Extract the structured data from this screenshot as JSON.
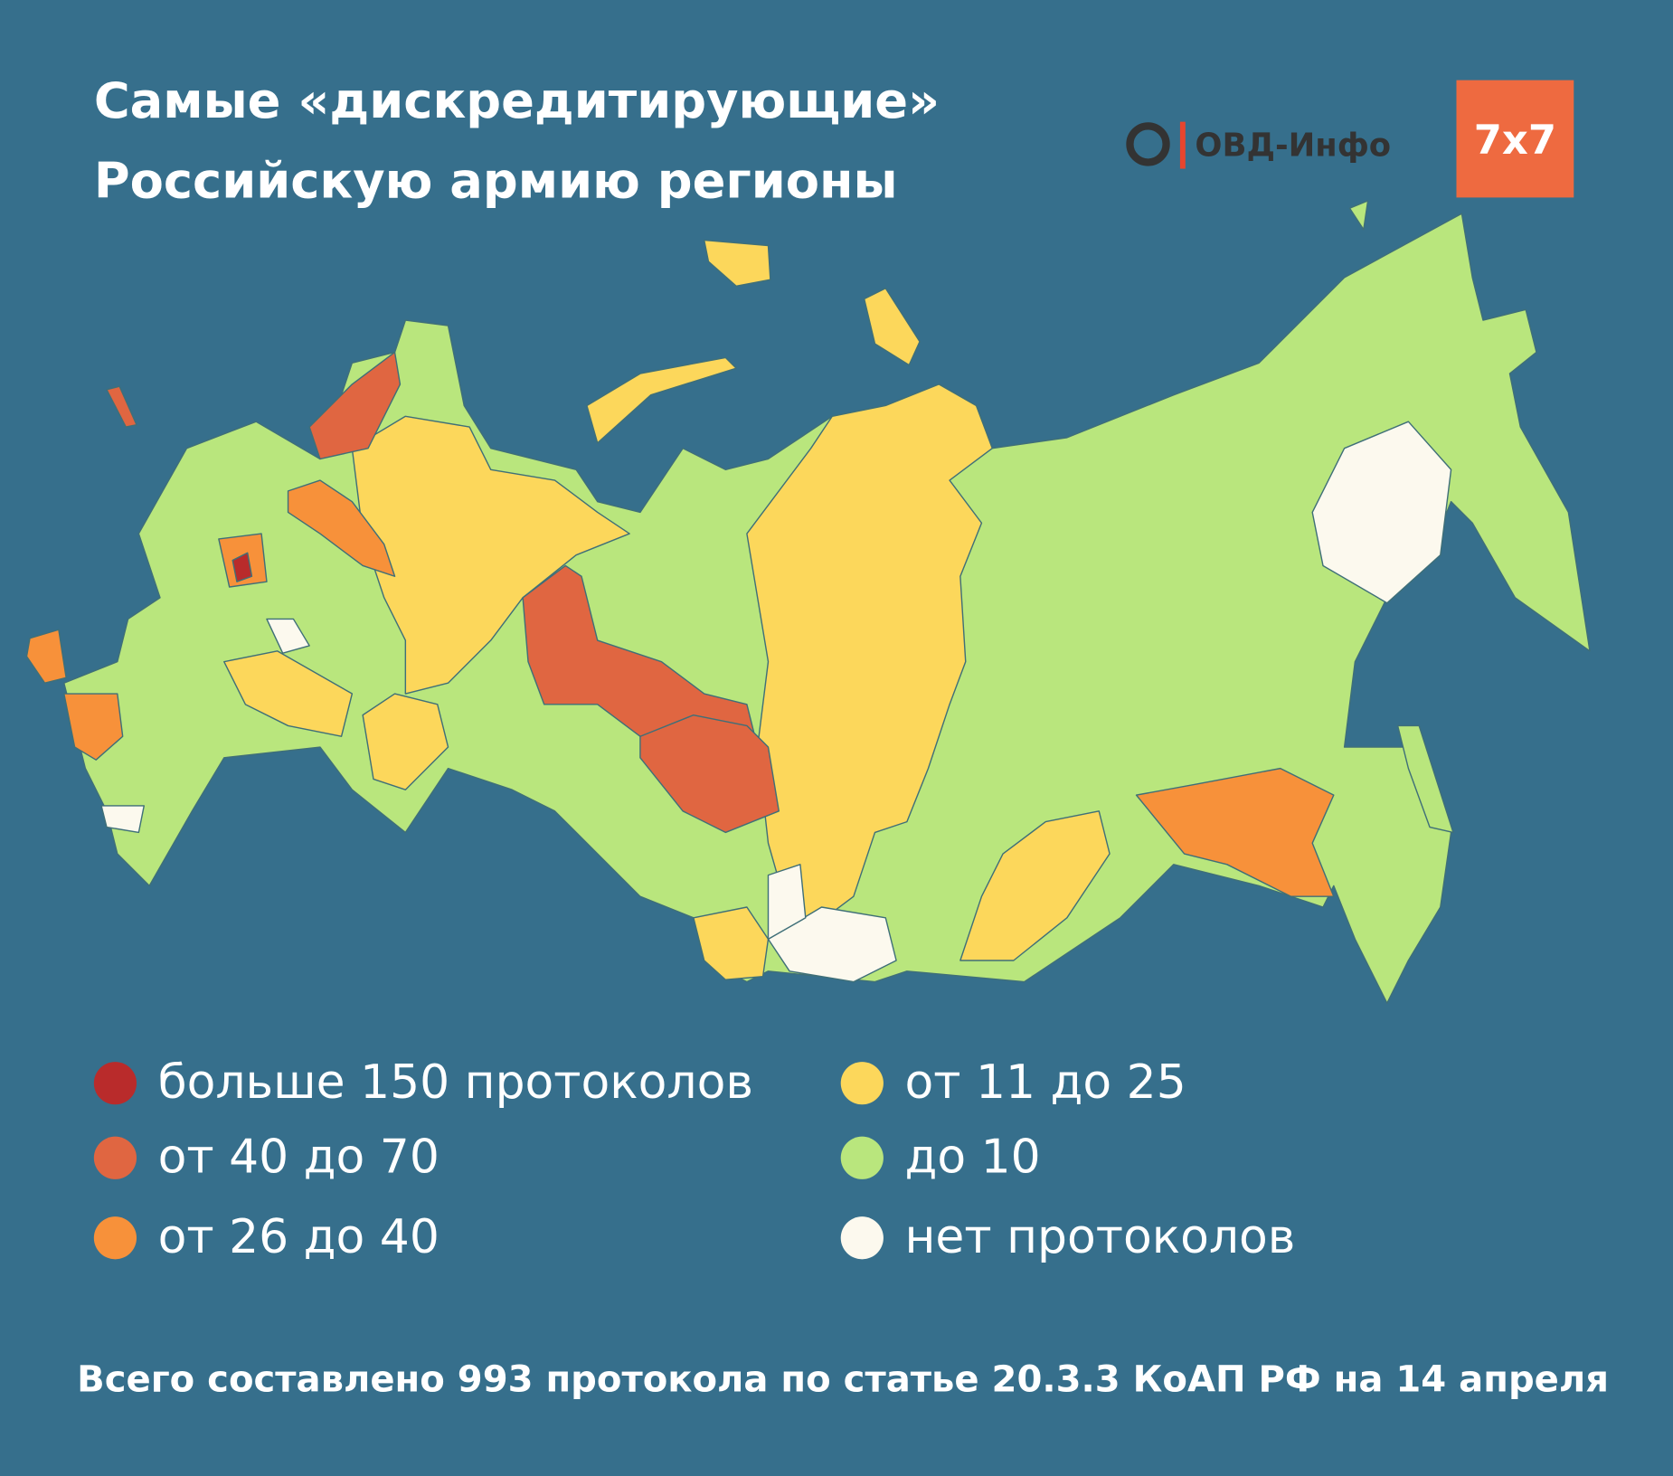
{
  "header": {
    "title": [
      "Самые «дискредитирующие»",
      "Российскую армию регионы"
    ],
    "logos": [
      "ОВД-Инфо",
      "7x7"
    ]
  },
  "legend": [
    {
      "label": "больше 150 протоколов",
      "color": "#b92b2b"
    },
    {
      "label": "от 40 до 70",
      "color": "#e06641"
    },
    {
      "label": "от 26 до 40",
      "color": "#f7913a"
    },
    {
      "label": "от 11 до 25",
      "color": "#fcd75b"
    },
    {
      "label": "до 10",
      "color": "#b9e67d"
    },
    {
      "label": "нет протоколов",
      "color": "#fcf9ee"
    }
  ],
  "footer": "Всего составлено 993 протокола по статье 20.3.3 КоАП РФ на 14 апреля"
}
